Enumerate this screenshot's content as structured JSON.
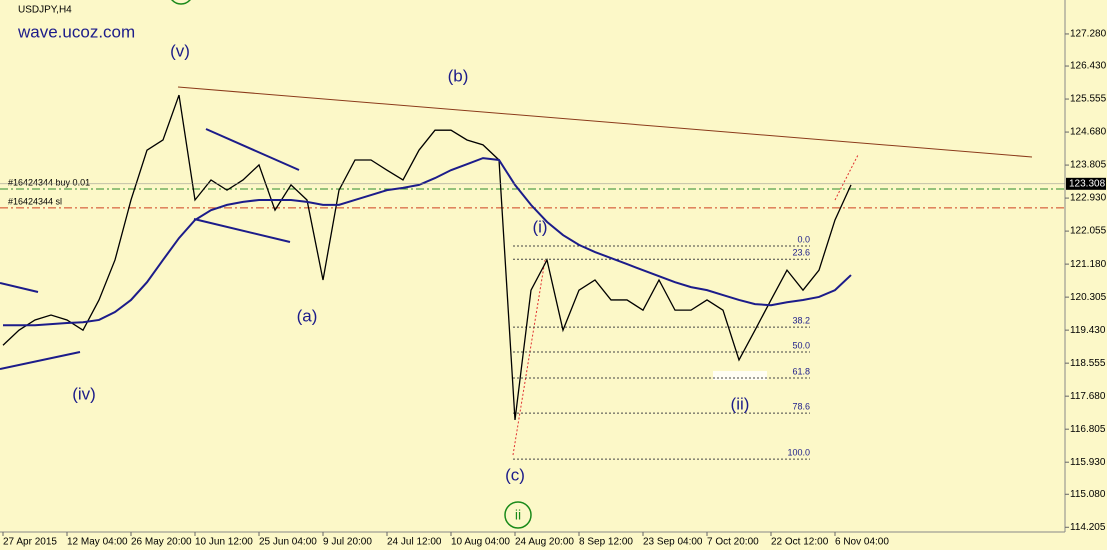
{
  "chart_data": {
    "type": "line",
    "title": "USDJPY,H4",
    "subtitle": "wave.ucoz.com",
    "categories": [
      "27 Apr 2015",
      null,
      null,
      null,
      "12 May 04:00",
      null,
      null,
      null,
      "26 May 20:00",
      null,
      null,
      null,
      "10 Jun 12:00",
      null,
      null,
      null,
      "25 Jun 04:00",
      null,
      null,
      null,
      "9 Jul 20:00",
      null,
      null,
      null,
      "24 Jul 12:00",
      null,
      null,
      null,
      "10 Aug 04:00",
      null,
      null,
      null,
      "24 Aug 20:00",
      null,
      null,
      null,
      "8 Sep 12:00",
      null,
      null,
      null,
      "23 Sep 04:00",
      null,
      null,
      null,
      "7 Oct 20:00",
      null,
      null,
      null,
      "22 Oct 12:00",
      null,
      null,
      null,
      "6 Nov 04:00",
      null
    ],
    "series": [
      {
        "color": "#000000",
        "values": [
          119.03,
          119.43,
          119.7,
          119.83,
          119.7,
          119.43,
          120.23,
          121.29,
          122.88,
          124.2,
          124.47,
          125.66,
          122.88,
          123.41,
          123.14,
          123.41,
          123.81,
          122.61,
          123.28,
          122.88,
          120.76,
          123.14,
          123.94,
          123.94,
          123.67,
          123.41,
          124.2,
          124.73,
          124.73,
          124.47,
          124.34,
          123.94,
          117.05,
          120.49,
          121.29,
          119.43,
          120.49,
          120.76,
          120.23,
          120.23,
          119.96,
          120.76,
          119.96,
          119.96,
          120.23,
          119.96,
          118.64,
          119.43,
          120.23,
          121.02,
          120.49,
          121.02,
          122.35,
          123.28
        ]
      },
      {
        "color": "#1c1c8a",
        "values": [
          119.56,
          119.56,
          119.56,
          119.59,
          119.62,
          119.64,
          119.7,
          119.91,
          120.23,
          120.7,
          121.29,
          121.87,
          122.35,
          122.61,
          122.75,
          122.83,
          122.88,
          122.88,
          122.88,
          122.83,
          122.75,
          122.75,
          122.88,
          123.01,
          123.14,
          123.2,
          123.28,
          123.46,
          123.67,
          123.83,
          123.99,
          123.94,
          123.28,
          122.75,
          122.3,
          121.95,
          121.69,
          121.5,
          121.34,
          121.18,
          121.02,
          120.86,
          120.7,
          120.57,
          120.49,
          120.36,
          120.23,
          120.12,
          120.09,
          120.17,
          120.23,
          120.31,
          120.49,
          120.89
        ]
      }
    ],
    "ylim": [
      114.08,
      128.18
    ],
    "yticks": [
      {
        "value": 127.28,
        "label": "127.280"
      },
      {
        "value": 126.43,
        "label": "126.430"
      },
      125.555,
      {
        "value": 124.68,
        "label": "124.680"
      },
      123.805,
      {
        "value": 122.93,
        "label": "122.930"
      },
      122.055,
      {
        "value": 121.18,
        "label": "121.180"
      },
      120.305,
      {
        "value": 119.43,
        "label": "119.430"
      },
      118.555,
      {
        "value": 117.68,
        "label": "117.680"
      },
      116.805,
      {
        "value": 115.93,
        "label": "115.930"
      },
      {
        "value": 115.08,
        "label": "115.080"
      },
      114.205
    ],
    "current_price": 123.308,
    "order_lines": [
      {
        "label": "#16424344 buy 0.01",
        "value": 123.17,
        "color": "#2e8b2e"
      },
      {
        "label": "#16424344 sl",
        "value": 122.67,
        "color": "#d04020"
      }
    ],
    "fib_levels": [
      {
        "label": "0.0",
        "value": 121.66
      },
      {
        "label": "23.6",
        "value": 121.31
      },
      {
        "label": "38.2",
        "value": 119.51
      },
      {
        "label": "50.0",
        "value": 118.85
      },
      {
        "label": "61.8",
        "value": 118.16
      },
      {
        "label": "78.6",
        "value": 117.23
      },
      {
        "label": "100.0",
        "value": 116.01
      }
    ],
    "annotations": [
      "(v)",
      "(iv)",
      "(a)",
      "(b)",
      "(c)",
      "(i)",
      "(ii)"
    ],
    "wave_marker": "ii"
  }
}
